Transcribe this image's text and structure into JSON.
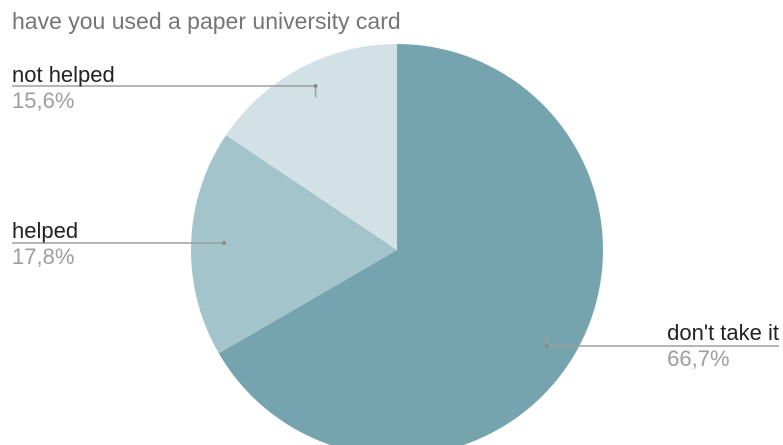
{
  "chart_data": {
    "type": "pie",
    "title": "have you used a paper university card",
    "slices": [
      {
        "label": "don't take it",
        "value": 66.7,
        "value_label": "66,7%",
        "color": "#75a4af"
      },
      {
        "label": "helped",
        "value": 17.8,
        "value_label": "17,8%",
        "color": "#a3c4ca"
      },
      {
        "label": "not helped",
        "value": 15.6,
        "value_label": "15,6%",
        "color": "#d2e1e5"
      }
    ],
    "start_angle_deg": 0,
    "direction": "clockwise",
    "label_position": "outside with leader lines"
  }
}
